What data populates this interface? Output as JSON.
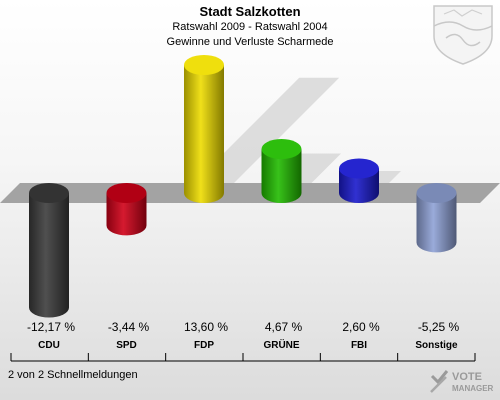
{
  "header": {
    "title": "Stadt Salzkotten",
    "subtitle": "Ratswahl 2009 - Ratswahl 2004",
    "subtitle2": "Gewinne und Verluste Scharmede"
  },
  "footer": {
    "text": "2 von 2 Schnellmeldungen"
  },
  "logo": {
    "line1": "VOTE",
    "line2": "MANAGER"
  },
  "chart_data": {
    "type": "bar",
    "title": "Gewinne und Verluste Scharmede",
    "categories": [
      "CDU",
      "SPD",
      "FDP",
      "GRÜNE",
      "FBI",
      "Sonstige"
    ],
    "values": [
      -12.17,
      -3.44,
      13.6,
      4.67,
      2.6,
      -5.25
    ],
    "value_labels": [
      "-12,17 %",
      "-3,44 %",
      "13,60 %",
      "4,67 %",
      "2,60 %",
      "-5,25 %"
    ],
    "colors": [
      "#3c3c3c",
      "#d00018",
      "#eedd00",
      "#22bb00",
      "#1a1acc",
      "#8fa2d6"
    ],
    "ylim": [
      -14,
      14
    ],
    "grid": false,
    "legend": "none"
  }
}
